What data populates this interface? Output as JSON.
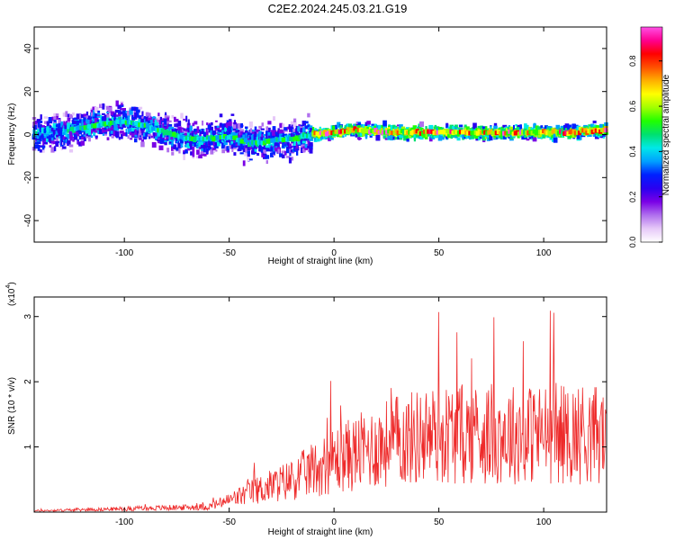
{
  "title": "C2E2.2024.245.03.21.G19",
  "charts": {
    "spectrogram": {
      "type": "heatmap",
      "xlabel": "Height of straight line (km)",
      "ylabel": "Frequency (Hz)",
      "xlim": [
        -143,
        130
      ],
      "ylim": [
        -50,
        50
      ],
      "xticks": [
        -100,
        -50,
        0,
        50,
        100
      ],
      "yticks": [
        40,
        20,
        0,
        -20,
        -40
      ],
      "colorbar": {
        "label": "Normalized spectral amplitude",
        "range": [
          0,
          0.95
        ],
        "ticks": [
          "0.0",
          "0.2",
          "0.4",
          "0.6",
          "0.8"
        ],
        "tick_values": [
          0,
          0.2,
          0.4,
          0.6,
          0.8
        ],
        "colors": [
          "#ffffff",
          "#e6c8f8",
          "#b070ee",
          "#7a00e6",
          "#2a00f0",
          "#0020ff",
          "#00a0ff",
          "#00e8e8",
          "#00e070",
          "#20ff00",
          "#a0ff00",
          "#ffff00",
          "#ffb000",
          "#ff5000",
          "#ff0000",
          "#ff0090",
          "#ff50e6"
        ]
      },
      "ridge": {
        "x": [
          -143,
          -120,
          -110,
          -100,
          -90,
          -80,
          -70,
          -60,
          -50,
          -40,
          -30,
          -20,
          -10,
          0,
          10,
          30,
          50,
          70,
          90,
          110,
          130
        ],
        "y": [
          0,
          3,
          5,
          6,
          4,
          1,
          -2,
          -2,
          -1,
          -4,
          -3,
          -2,
          0,
          1,
          2,
          1,
          1,
          1,
          1,
          1,
          2
        ]
      }
    },
    "snr": {
      "type": "line",
      "xlabel": "Height of straight line (km)",
      "ylabel": "SNR (10 * v/v)",
      "scale_note": "(x10",
      "scale_exponent": "4",
      "xlim": [
        -143,
        130
      ],
      "ylim": [
        0,
        3.3
      ],
      "xticks": [
        -100,
        -50,
        0,
        50,
        100
      ],
      "yticks": [
        1,
        2,
        3
      ],
      "color": "#ee2a2a",
      "envelope": {
        "x": [
          -143,
          -60,
          -50,
          -40,
          -30,
          -20,
          -10,
          0,
          10,
          20,
          30,
          40,
          50,
          60,
          70,
          80,
          90,
          100,
          110,
          120,
          130
        ],
        "y": [
          0.02,
          0.08,
          0.18,
          0.3,
          0.4,
          0.5,
          0.65,
          0.8,
          0.9,
          1.0,
          1.1,
          1.15,
          1.2,
          1.2,
          1.2,
          1.2,
          1.2,
          1.2,
          1.2,
          1.2,
          1.2
        ]
      }
    }
  }
}
